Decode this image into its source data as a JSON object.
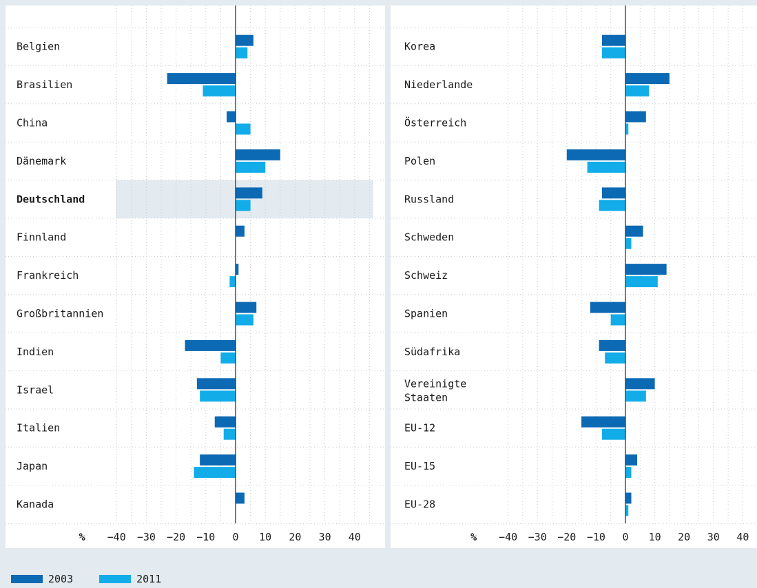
{
  "legend": {
    "s2003": "2003",
    "s2011": "2011"
  },
  "colors": {
    "series_2003": "#0c69b4",
    "series_2011": "#12ade8",
    "highlight": "#e3eaf0",
    "background": "#e3eaf0"
  },
  "chart_data": [
    {
      "type": "bar",
      "orientation": "horizontal",
      "axis_unit_label": "%",
      "xlim": [
        -40,
        45
      ],
      "xticks": [
        -40,
        -30,
        -20,
        -10,
        0,
        10,
        20,
        30,
        40
      ],
      "grid": true,
      "highlighted_category": "Deutschland",
      "categories": [
        "Belgien",
        "Brasilien",
        "China",
        "Dänemark",
        "Deutschland",
        "Finnland",
        "Frankreich",
        "Großbritannien",
        "Indien",
        "Israel",
        "Italien",
        "Japan",
        "Kanada"
      ],
      "series": [
        {
          "name": "2003",
          "values": [
            6,
            -23,
            -3,
            15,
            9,
            3,
            1,
            7,
            -17,
            -13,
            -7,
            -12,
            3
          ]
        },
        {
          "name": "2011",
          "values": [
            4,
            -11,
            5,
            10,
            5,
            0,
            -2,
            6,
            -5,
            -12,
            -4,
            -14,
            0
          ]
        }
      ]
    },
    {
      "type": "bar",
      "orientation": "horizontal",
      "axis_unit_label": "%",
      "xlim": [
        -40,
        45
      ],
      "xticks": [
        -40,
        -30,
        -20,
        -10,
        0,
        10,
        20,
        30,
        40
      ],
      "grid": true,
      "categories": [
        "Korea",
        "Niederlande",
        "Österreich",
        "Polen",
        "Russland",
        "Schweden",
        "Schweiz",
        "Spanien",
        "Südafrika",
        "Vereinigte Staaten",
        "EU-12",
        "EU-15",
        "EU-28"
      ],
      "series": [
        {
          "name": "2003",
          "values": [
            -8,
            15,
            7,
            -20,
            -8,
            6,
            14,
            -12,
            -9,
            10,
            -15,
            4,
            2
          ]
        },
        {
          "name": "2011",
          "values": [
            -8,
            8,
            1,
            -13,
            -9,
            2,
            11,
            -5,
            -7,
            7,
            -8,
            2,
            1
          ]
        }
      ]
    }
  ]
}
